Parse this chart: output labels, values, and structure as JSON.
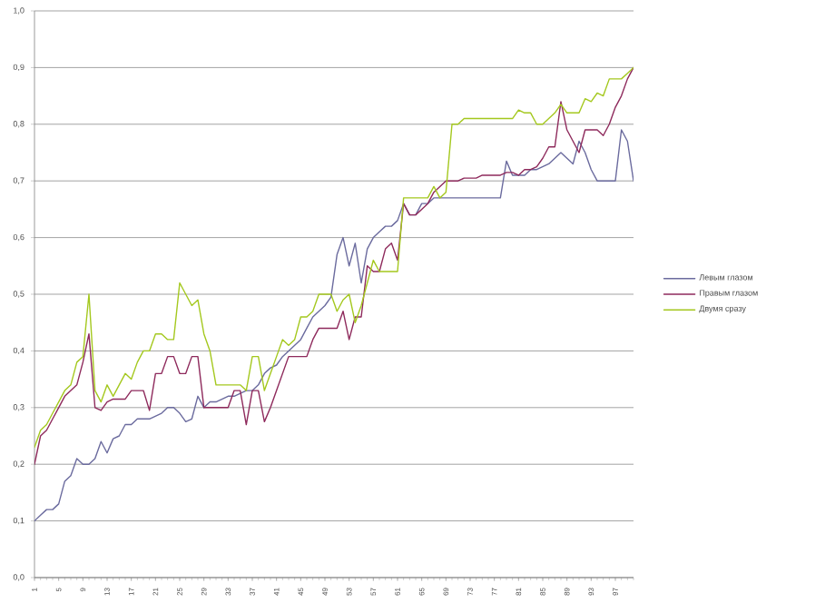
{
  "chart_data": {
    "type": "line",
    "categories": [
      "1",
      null,
      null,
      null,
      "5",
      null,
      null,
      null,
      "9",
      null,
      null,
      null,
      "13",
      null,
      null,
      null,
      "17",
      null,
      null,
      null,
      "21",
      null,
      null,
      null,
      "25",
      null,
      null,
      null,
      "29",
      null,
      null,
      null,
      "33",
      null,
      null,
      null,
      "37",
      null,
      null,
      null,
      "41",
      null,
      null,
      null,
      "45",
      null,
      null,
      null,
      "49",
      null,
      null,
      null,
      "53",
      null,
      null,
      null,
      "57",
      null,
      null,
      null,
      "61",
      null,
      null,
      null,
      "65",
      null,
      null,
      null,
      "69",
      null,
      null,
      null,
      "73",
      null,
      null,
      null,
      "77",
      null,
      null,
      null,
      "81",
      null,
      null,
      null,
      "85",
      null,
      null,
      null,
      "89",
      null,
      null,
      null,
      "93",
      null,
      null,
      null,
      "97",
      null,
      null,
      null
    ],
    "series": [
      {
        "name": "Левым глазом",
        "color": "#6b6b9e",
        "values": [
          0.1,
          0.11,
          0.12,
          0.12,
          0.13,
          0.17,
          0.18,
          0.21,
          0.2,
          0.2,
          0.21,
          0.24,
          0.22,
          0.245,
          0.25,
          0.27,
          0.27,
          0.28,
          0.28,
          0.28,
          0.285,
          0.29,
          0.3,
          0.3,
          0.29,
          0.275,
          0.28,
          0.32,
          0.3,
          0.31,
          0.31,
          0.315,
          0.32,
          0.32,
          0.325,
          0.33,
          0.33,
          0.34,
          0.36,
          0.37,
          0.375,
          0.39,
          0.4,
          0.41,
          0.42,
          0.44,
          0.46,
          0.47,
          0.48,
          0.495,
          0.57,
          0.6,
          0.55,
          0.59,
          0.52,
          0.58,
          0.6,
          0.61,
          0.62,
          0.62,
          0.63,
          0.66,
          0.64,
          0.64,
          0.66,
          0.66,
          0.67,
          0.67,
          0.67,
          0.67,
          0.67,
          0.67,
          0.67,
          0.67,
          0.67,
          0.67,
          0.67,
          0.67,
          0.735,
          0.71,
          0.71,
          0.71,
          0.72,
          0.72,
          0.725,
          0.73,
          0.74,
          0.75,
          0.74,
          0.73,
          0.77,
          0.75,
          0.72,
          0.7,
          0.7,
          0.7,
          0.7,
          0.79,
          0.77,
          0.7
        ]
      },
      {
        "name": "Правым глазом",
        "color": "#8e2a5c",
        "values": [
          0.2,
          0.25,
          0.26,
          0.28,
          0.3,
          0.32,
          0.33,
          0.34,
          0.38,
          0.43,
          0.3,
          0.295,
          0.31,
          0.315,
          0.315,
          0.315,
          0.33,
          0.33,
          0.33,
          0.295,
          0.36,
          0.36,
          0.39,
          0.39,
          0.36,
          0.36,
          0.39,
          0.39,
          0.3,
          0.3,
          0.3,
          0.3,
          0.3,
          0.33,
          0.33,
          0.27,
          0.33,
          0.33,
          0.275,
          0.3,
          0.33,
          0.36,
          0.39,
          0.39,
          0.39,
          0.39,
          0.42,
          0.44,
          0.44,
          0.44,
          0.44,
          0.47,
          0.42,
          0.46,
          0.46,
          0.55,
          0.54,
          0.54,
          0.58,
          0.59,
          0.56,
          0.66,
          0.64,
          0.64,
          0.65,
          0.66,
          0.68,
          0.69,
          0.7,
          0.7,
          0.7,
          0.705,
          0.705,
          0.705,
          0.71,
          0.71,
          0.71,
          0.71,
          0.715,
          0.715,
          0.71,
          0.72,
          0.72,
          0.725,
          0.74,
          0.76,
          0.76,
          0.84,
          0.79,
          0.77,
          0.75,
          0.79,
          0.79,
          0.79,
          0.78,
          0.8,
          0.83,
          0.85,
          0.88,
          0.9
        ]
      },
      {
        "name": "Двумя сразу",
        "color": "#a4c81e",
        "values": [
          0.23,
          0.26,
          0.27,
          0.29,
          0.31,
          0.33,
          0.34,
          0.38,
          0.39,
          0.5,
          0.33,
          0.31,
          0.34,
          0.32,
          0.34,
          0.36,
          0.35,
          0.38,
          0.4,
          0.4,
          0.43,
          0.43,
          0.42,
          0.42,
          0.52,
          0.5,
          0.48,
          0.49,
          0.43,
          0.4,
          0.34,
          0.34,
          0.34,
          0.34,
          0.34,
          0.33,
          0.39,
          0.39,
          0.33,
          0.36,
          0.39,
          0.42,
          0.41,
          0.42,
          0.46,
          0.46,
          0.47,
          0.5,
          0.5,
          0.5,
          0.47,
          0.49,
          0.5,
          0.45,
          0.48,
          0.52,
          0.56,
          0.54,
          0.54,
          0.54,
          0.54,
          0.67,
          0.67,
          0.67,
          0.67,
          0.67,
          0.69,
          0.67,
          0.68,
          0.8,
          0.8,
          0.81,
          0.81,
          0.81,
          0.81,
          0.81,
          0.81,
          0.81,
          0.81,
          0.81,
          0.825,
          0.82,
          0.82,
          0.8,
          0.8,
          0.81,
          0.82,
          0.835,
          0.82,
          0.82,
          0.82,
          0.845,
          0.84,
          0.855,
          0.85,
          0.88,
          0.88,
          0.88,
          0.89,
          0.9
        ]
      }
    ],
    "ylim": [
      0,
      1
    ],
    "yticks": [
      {
        "value": 0,
        "label": "0,0"
      },
      {
        "value": 0.1,
        "label": "0,1"
      },
      {
        "value": 0.2,
        "label": "0,2"
      },
      {
        "value": 0.3,
        "label": "0,3"
      },
      {
        "value": 0.4,
        "label": "0,4"
      },
      {
        "value": 0.5,
        "label": "0,5"
      },
      {
        "value": 0.6,
        "label": "0,6"
      },
      {
        "value": 0.7,
        "label": "0,7"
      },
      {
        "value": 0.8,
        "label": "0,8"
      },
      {
        "value": 0.9,
        "label": "0,9"
      },
      {
        "value": 1,
        "label": "1,0"
      }
    ],
    "grid": "y",
    "legend": "right",
    "marker": "none",
    "line_style": "solid"
  }
}
